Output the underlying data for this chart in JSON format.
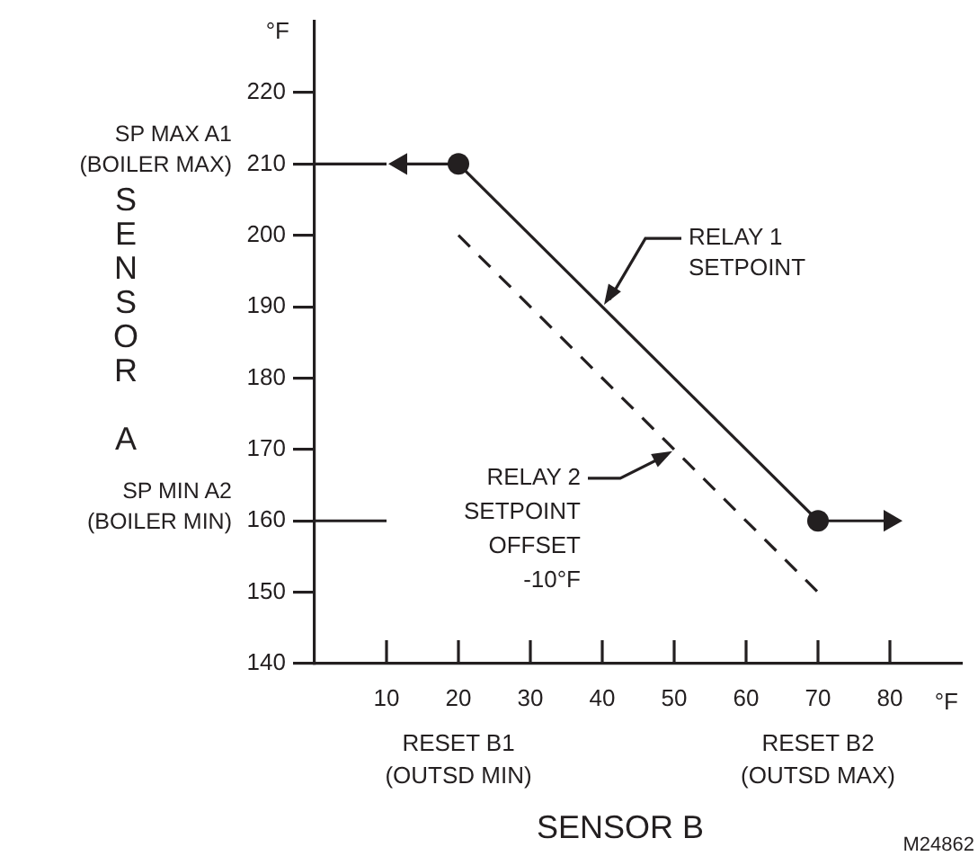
{
  "chart_data": {
    "type": "line",
    "xlabel": "SENSOR B",
    "ylabel": "SENSOR A",
    "xlim": [
      0,
      90
    ],
    "ylim": [
      140,
      230
    ],
    "xticks": [
      10,
      20,
      30,
      40,
      50,
      60,
      70,
      80
    ],
    "yticks": [
      140,
      150,
      160,
      170,
      180,
      190,
      200,
      210,
      220
    ],
    "grid": false,
    "legend": false,
    "series": [
      {
        "color": "#231f20",
        "x": [
          20,
          70
        ],
        "values": [
          210,
          160
        ],
        "marker": "circle",
        "line_style": "solid"
      },
      {
        "color": "#231f20",
        "x": [
          12,
          20
        ],
        "values": [
          210,
          210
        ],
        "marker": "triangle",
        "line_style": "solid"
      },
      {
        "color": "#231f20",
        "x": [
          70,
          80
        ],
        "values": [
          160,
          160
        ],
        "marker": "triangle",
        "line_style": "solid"
      },
      {
        "color": "#231f20",
        "x": [
          20,
          70
        ],
        "values": [
          200,
          150
        ],
        "marker": "none",
        "line_style": "dashed"
      }
    ],
    "ref_lines": [
      {
        "axis": "y",
        "value": 210
      },
      {
        "axis": "y",
        "value": 160
      }
    ],
    "annotations": [
      "SP MAX A1\n(BOILER MAX)",
      "SP MIN A2\n(BOILER MIN)",
      "RESET B1\n(OUTSD MIN)",
      "RESET B2\n(OUTSD MAX)",
      {
        "text": "RELAY 1\nSETPOINT",
        "x": 40,
        "y": 190
      },
      {
        "text": "RELAY 2\nSETPOINT\nOFFSET\n-10°F",
        "x": 50,
        "y": 170
      },
      "°F",
      "°F",
      "M24862"
    ]
  }
}
